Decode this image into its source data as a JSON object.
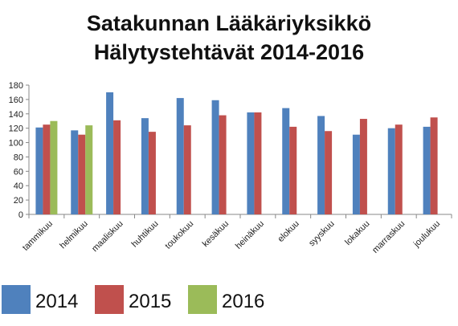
{
  "chart_data": {
    "type": "bar",
    "title_lines": [
      "Satakunnan Lääkäriyksikkö",
      "Hälytystehtävät 2014-2016"
    ],
    "categories": [
      "tammikuu",
      "helmikuu",
      "maaliskuu",
      "huhtikuu",
      "toukokuu",
      "kesäkuu",
      "heinäkuu",
      "elokuu",
      "syyskuu",
      "lokakuu",
      "marraskuu",
      "joulukuu"
    ],
    "series": [
      {
        "name": "2014",
        "color": "#4f81bd",
        "values": [
          121,
          117,
          170,
          134,
          162,
          159,
          142,
          148,
          137,
          111,
          120,
          122
        ]
      },
      {
        "name": "2015",
        "color": "#c0504d",
        "values": [
          125,
          111,
          131,
          115,
          124,
          138,
          142,
          122,
          116,
          133,
          125,
          135
        ]
      },
      {
        "name": "2016",
        "color": "#9bbb59",
        "values": [
          130,
          124,
          null,
          null,
          null,
          null,
          null,
          null,
          null,
          null,
          null,
          null
        ]
      }
    ],
    "ylim": [
      0,
      180
    ],
    "yticks": [
      0,
      20,
      40,
      60,
      80,
      100,
      120,
      140,
      160,
      180
    ],
    "grid": false,
    "legend_position": "bottom",
    "xlabel": "",
    "ylabel": ""
  }
}
